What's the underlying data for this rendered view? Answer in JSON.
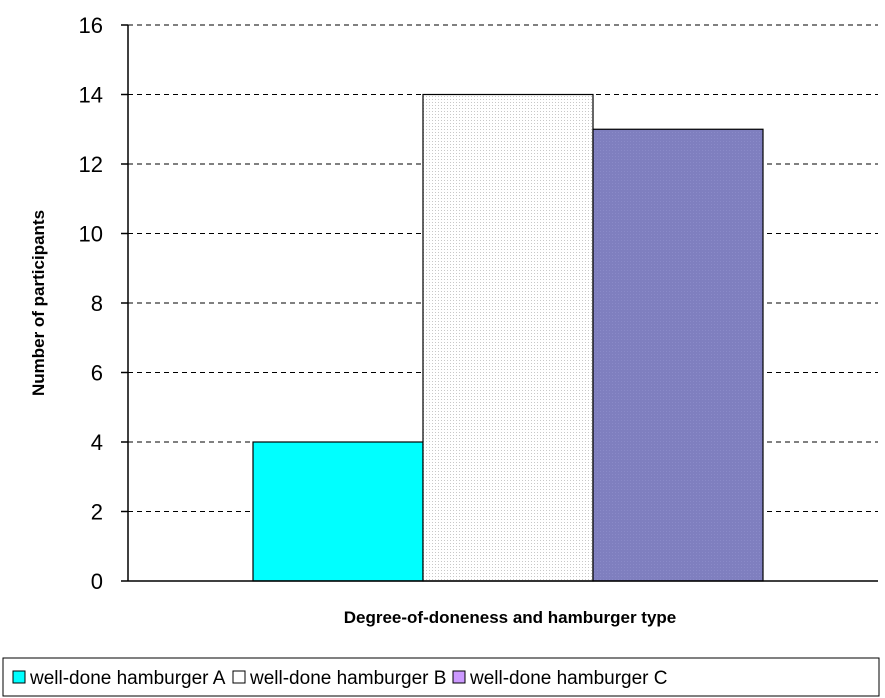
{
  "chart_data": {
    "type": "bar",
    "title": "",
    "xlabel": "Degree-of-doneness and hamburger type",
    "ylabel": "Number of participants",
    "ylim": [
      0,
      16
    ],
    "yticks": [
      0,
      2,
      4,
      6,
      8,
      10,
      12,
      14,
      16
    ],
    "grid": true,
    "legend_position": "bottom",
    "series": [
      {
        "name": "well-done hamburger A",
        "value": 4,
        "color": "#00ffff",
        "pattern": "solid"
      },
      {
        "name": "well-done hamburger B",
        "value": 14,
        "color": "#ffffff",
        "pattern": "dotted"
      },
      {
        "name": "well-done hamburger C",
        "value": 13,
        "color": "#8080c0",
        "pattern": "fine-hatch"
      }
    ]
  }
}
